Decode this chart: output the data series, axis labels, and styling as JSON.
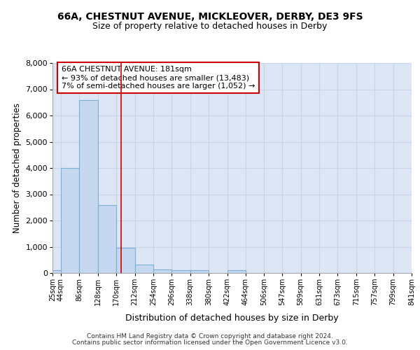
{
  "title1": "66A, CHESTNUT AVENUE, MICKLEOVER, DERBY, DE3 9FS",
  "title2": "Size of property relative to detached houses in Derby",
  "xlabel": "Distribution of detached houses by size in Derby",
  "ylabel": "Number of detached properties",
  "bar_left_edges": [
    25,
    44,
    86,
    128,
    170,
    212,
    254,
    296,
    338,
    380,
    422,
    464,
    506,
    547,
    589,
    631,
    673,
    715,
    757,
    799
  ],
  "bar_widths": [
    19,
    42,
    42,
    42,
    42,
    42,
    42,
    42,
    42,
    42,
    42,
    42,
    41,
    42,
    42,
    42,
    42,
    42,
    42,
    42
  ],
  "bar_heights": [
    100,
    4000,
    6600,
    2600,
    950,
    330,
    140,
    110,
    110,
    0,
    110,
    0,
    0,
    0,
    0,
    0,
    0,
    0,
    0,
    0
  ],
  "bar_color": "#c5d8f0",
  "bar_edge_color": "#7bafd4",
  "grid_color": "#c8d4e8",
  "background_color": "#dce6f5",
  "vline_x": 181,
  "vline_color": "#cc0000",
  "annotation_line1": "66A CHESTNUT AVENUE: 181sqm",
  "annotation_line2": "← 93% of detached houses are smaller (13,483)",
  "annotation_line3": "7% of semi-detached houses are larger (1,052) →",
  "annotation_box_color": "#ffffff",
  "annotation_box_edge": "#cc0000",
  "xlim": [
    25,
    841
  ],
  "ylim": [
    0,
    8000
  ],
  "yticks": [
    0,
    1000,
    2000,
    3000,
    4000,
    5000,
    6000,
    7000,
    8000
  ],
  "xtick_labels": [
    "25sqm",
    "44sqm",
    "86sqm",
    "128sqm",
    "170sqm",
    "212sqm",
    "254sqm",
    "296sqm",
    "338sqm",
    "380sqm",
    "422sqm",
    "464sqm",
    "506sqm",
    "547sqm",
    "589sqm",
    "631sqm",
    "673sqm",
    "715sqm",
    "757sqm",
    "799sqm",
    "841sqm"
  ],
  "xtick_positions": [
    25,
    44,
    86,
    128,
    170,
    212,
    254,
    296,
    338,
    380,
    422,
    464,
    506,
    547,
    589,
    631,
    673,
    715,
    757,
    799,
    841
  ],
  "footer_text1": "Contains HM Land Registry data © Crown copyright and database right 2024.",
  "footer_text2": "Contains public sector information licensed under the Open Government Licence v3.0."
}
